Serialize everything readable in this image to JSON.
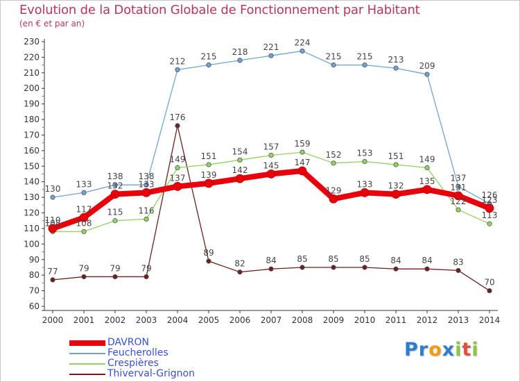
{
  "title": "Evolution de la Dotation Globale de Fonctionnement par Habitant",
  "subtitle": "(en € et par an)",
  "logo": {
    "text": "Proxiti",
    "letters": [
      "P",
      "r",
      "o",
      "x",
      "i",
      "t",
      "i"
    ],
    "colors": [
      "#2e7dd1",
      "#2e7dd1",
      "#f39c12",
      "#2e7dd1",
      "#8cc63f",
      "#e74c3c",
      "#8cc63f"
    ]
  },
  "chart_data": {
    "type": "line",
    "title": "Evolution de la Dotation Globale de Fonctionnement par Habitant",
    "subtitle": "(en € et par an)",
    "x": [
      "2000",
      "2001",
      "2002",
      "2003",
      "2004",
      "2005",
      "2006",
      "2007",
      "2008",
      "2009",
      "2010",
      "2011",
      "2012",
      "2013",
      "2014"
    ],
    "y_ticks": [
      "60",
      "70",
      "80",
      "90",
      "100",
      "110",
      "120",
      "130",
      "140",
      "150",
      "160",
      "170",
      "180",
      "190",
      "200",
      "210",
      "220",
      "230"
    ],
    "ylim": [
      60,
      230
    ],
    "grid": false,
    "legend_position": "bottom-left",
    "series": [
      {
        "name": "DAVRON",
        "color": "#e8000b",
        "values": [
          110,
          117,
          132,
          133,
          137,
          139,
          142,
          145,
          147,
          129,
          133,
          132,
          135,
          131,
          123
        ]
      },
      {
        "name": "Feucherolles",
        "color": "#6fa3d6",
        "values": [
          130,
          133,
          138,
          138,
          212,
          215,
          218,
          221,
          224,
          215,
          215,
          213,
          209,
          137,
          126
        ]
      },
      {
        "name": "Crespières",
        "color": "#8fd45e",
        "values": [
          108,
          108,
          115,
          116,
          149,
          151,
          154,
          157,
          159,
          152,
          153,
          151,
          149,
          122,
          113
        ]
      },
      {
        "name": "Thiverval-Grignon",
        "color": "#6b1f1f",
        "values": [
          77,
          79,
          79,
          79,
          176,
          89,
          82,
          84,
          85,
          85,
          85,
          84,
          84,
          83,
          70
        ]
      }
    ]
  }
}
